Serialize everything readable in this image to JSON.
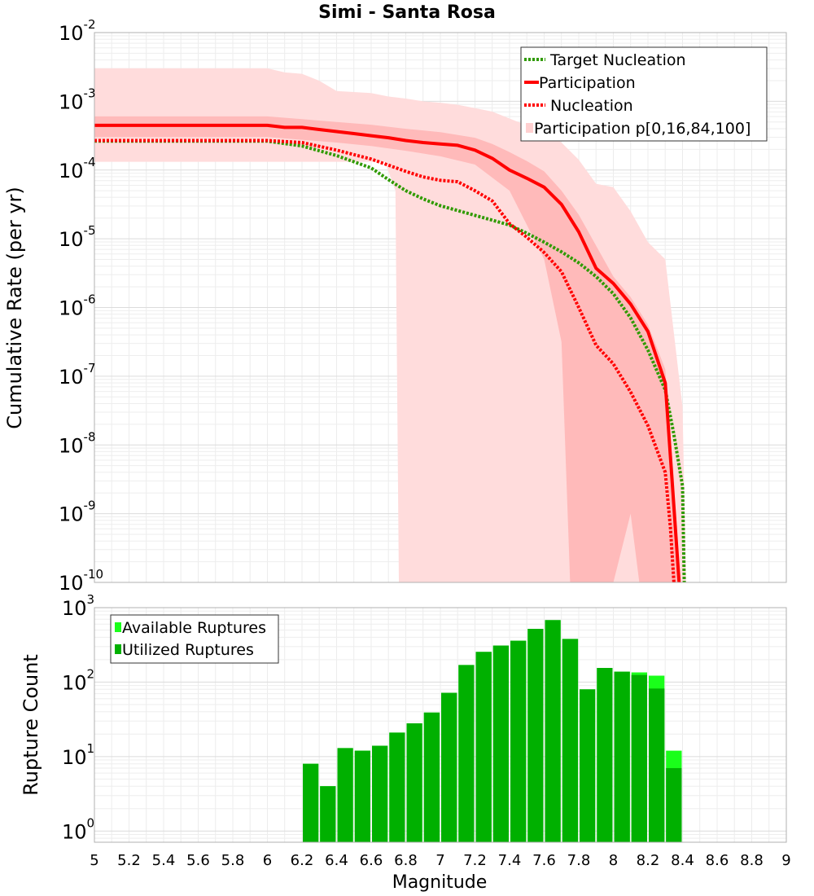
{
  "chart_data": [
    {
      "type": "line",
      "title": "Simi - Santa Rosa",
      "xlabel": "",
      "ylabel": "Cumulative Rate (per yr)",
      "xlim": [
        5,
        9
      ],
      "ylim_log10": [
        -10,
        -2
      ],
      "y_scale": "log",
      "y_tick_exponents": [
        "-2",
        "-3",
        "-4",
        "-5",
        "-6",
        "-7",
        "-8",
        "-9",
        "-10"
      ],
      "legend": {
        "position": "top-right",
        "entries": [
          "Target Nucleation",
          "Participation",
          "Nucleation",
          "Participation p[0,16,84,100]"
        ]
      },
      "colors": {
        "target_nucleation": "#2f9a00",
        "participation": "#ff0000",
        "nucleation": "#ff0000",
        "band_outer": "#ffdcdc",
        "band_inner": "#ffb4b4"
      },
      "series": [
        {
          "name": "Target Nucleation",
          "style": "dotted",
          "x": [
            5.0,
            5.5,
            6.0,
            6.2,
            6.4,
            6.6,
            6.7,
            6.8,
            6.9,
            7.0,
            7.1,
            7.2,
            7.3,
            7.4,
            7.5,
            7.6,
            7.7,
            7.8,
            7.9,
            8.0,
            8.1,
            8.2,
            8.3,
            8.35,
            8.4,
            8.41
          ],
          "log10_y": [
            -3.58,
            -3.58,
            -3.58,
            -3.65,
            -3.79,
            -3.97,
            -4.14,
            -4.3,
            -4.42,
            -4.52,
            -4.59,
            -4.66,
            -4.73,
            -4.8,
            -4.92,
            -5.05,
            -5.19,
            -5.35,
            -5.55,
            -5.8,
            -6.15,
            -6.62,
            -7.2,
            -7.85,
            -8.6,
            -10.0
          ]
        },
        {
          "name": "Participation",
          "style": "solid",
          "x": [
            5.0,
            5.5,
            6.0,
            6.1,
            6.2,
            6.3,
            6.4,
            6.5,
            6.6,
            6.7,
            6.8,
            6.9,
            7.0,
            7.1,
            7.2,
            7.3,
            7.4,
            7.5,
            7.6,
            7.7,
            7.8,
            7.9,
            8.0,
            8.1,
            8.2,
            8.3,
            8.35,
            8.38
          ],
          "log10_y": [
            -3.35,
            -3.35,
            -3.35,
            -3.38,
            -3.38,
            -3.41,
            -3.44,
            -3.47,
            -3.5,
            -3.53,
            -3.57,
            -3.6,
            -3.62,
            -3.64,
            -3.71,
            -3.83,
            -4.0,
            -4.12,
            -4.25,
            -4.5,
            -4.9,
            -5.43,
            -5.65,
            -5.95,
            -6.35,
            -7.1,
            -8.9,
            -10.0
          ]
        },
        {
          "name": "Nucleation",
          "style": "dotted",
          "x": [
            5.0,
            5.5,
            6.0,
            6.2,
            6.4,
            6.6,
            6.7,
            6.8,
            6.9,
            7.0,
            7.1,
            7.2,
            7.3,
            7.4,
            7.5,
            7.6,
            7.7,
            7.8,
            7.9,
            8.0,
            8.1,
            8.2,
            8.3,
            8.33,
            8.35
          ],
          "log10_y": [
            -3.57,
            -3.57,
            -3.57,
            -3.6,
            -3.71,
            -3.84,
            -3.93,
            -4.02,
            -4.1,
            -4.15,
            -4.17,
            -4.3,
            -4.45,
            -4.78,
            -4.98,
            -5.2,
            -5.48,
            -6.0,
            -6.55,
            -6.82,
            -7.23,
            -7.72,
            -8.4,
            -9.2,
            -10.0
          ]
        }
      ],
      "band_outer": {
        "name": "Participation p[0,100]",
        "x": [
          5.0,
          6.0,
          6.1,
          6.2,
          6.3,
          6.4,
          6.6,
          6.7,
          6.8,
          6.9,
          7.0,
          7.1,
          7.2,
          7.3,
          7.4,
          7.5,
          7.6,
          7.7,
          7.8,
          7.9,
          8.0,
          8.1,
          8.2,
          8.3,
          8.4,
          8.42
        ],
        "log10_upper": [
          -2.52,
          -2.52,
          -2.58,
          -2.6,
          -2.7,
          -2.85,
          -2.88,
          -2.93,
          -2.96,
          -3.0,
          -3.02,
          -3.05,
          -3.1,
          -3.15,
          -3.25,
          -3.35,
          -3.4,
          -3.6,
          -3.85,
          -4.2,
          -4.25,
          -4.6,
          -5.05,
          -5.3,
          -7.45,
          -10.0
        ],
        "x_lower": [
          5.0,
          6.0,
          6.68,
          6.74,
          6.76
        ],
        "log10_lower": [
          -3.88,
          -3.88,
          -3.88,
          -4.3,
          -10.0
        ]
      },
      "band_inner": {
        "name": "Participation p[16,84]",
        "x": [
          5.0,
          6.0,
          6.2,
          6.4,
          6.6,
          6.8,
          7.0,
          7.2,
          7.3,
          7.4,
          7.5,
          7.6,
          7.7,
          7.8,
          7.9,
          8.0,
          8.1,
          8.2,
          8.3,
          8.35,
          8.38
        ],
        "log10_upper": [
          -3.22,
          -3.22,
          -3.26,
          -3.3,
          -3.34,
          -3.4,
          -3.45,
          -3.53,
          -3.62,
          -3.74,
          -3.87,
          -4.02,
          -4.3,
          -4.65,
          -5.1,
          -5.55,
          -5.85,
          -6.25,
          -6.9,
          -8.5,
          -10.0
        ],
        "x_lower": [
          5.0,
          6.0,
          6.2,
          6.4,
          6.6,
          6.8,
          7.0,
          7.2,
          7.4,
          7.5,
          7.6,
          7.7,
          7.75,
          8.0,
          8.1,
          8.15
        ],
        "log10_lower": [
          -3.52,
          -3.52,
          -3.56,
          -3.6,
          -3.65,
          -3.72,
          -3.8,
          -3.92,
          -4.3,
          -4.8,
          -5.3,
          -6.5,
          -10.0,
          -10.0,
          -9.0,
          -10.0
        ]
      }
    },
    {
      "type": "bar",
      "title": "",
      "xlabel": "Magnitude",
      "ylabel": "Rupture Count",
      "xlim": [
        5,
        9
      ],
      "x_ticks": [
        "5",
        "5.2",
        "5.4",
        "5.6",
        "5.8",
        "6",
        "6.2",
        "6.4",
        "6.6",
        "6.8",
        "7",
        "7.2",
        "7.4",
        "7.6",
        "7.8",
        "8",
        "8.2",
        "8.4",
        "8.6",
        "8.8",
        "9"
      ],
      "ylim_log10": [
        -0.15,
        3
      ],
      "y_scale": "log",
      "y_tick_exponents": [
        "0",
        "1",
        "2",
        "3"
      ],
      "bin_width": 0.1,
      "legend": {
        "position": "top-left",
        "entries": [
          "Available Ruptures",
          "Utilized Ruptures"
        ]
      },
      "colors": {
        "available": "#1aff1a",
        "utilized": "#00b000"
      },
      "bin_centers": [
        6.25,
        6.35,
        6.45,
        6.55,
        6.65,
        6.75,
        6.85,
        6.95,
        7.05,
        7.15,
        7.25,
        7.35,
        7.45,
        7.55,
        7.65,
        7.75,
        7.85,
        7.95,
        8.05,
        8.15,
        8.25,
        8.35
      ],
      "series": [
        {
          "name": "Available Ruptures",
          "values": [
            8,
            4,
            13,
            12,
            14,
            21,
            28,
            39,
            72,
            170,
            255,
            310,
            360,
            520,
            680,
            380,
            80,
            155,
            138,
            135,
            122,
            12
          ]
        },
        {
          "name": "Utilized Ruptures",
          "values": [
            8,
            4,
            13,
            12,
            14,
            21,
            28,
            39,
            72,
            170,
            255,
            310,
            360,
            520,
            680,
            380,
            80,
            155,
            138,
            125,
            82,
            7
          ]
        }
      ]
    }
  ]
}
